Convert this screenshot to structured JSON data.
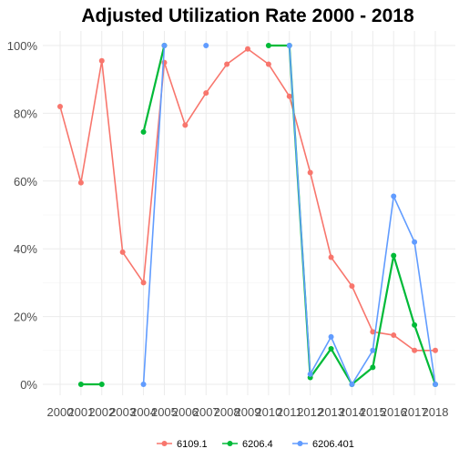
{
  "chart_data": {
    "type": "line",
    "title": "Adjusted Utilization Rate 2000 - 2018",
    "xlabel": "",
    "ylabel": "",
    "x": [
      "2000",
      "2001",
      "2002",
      "2003",
      "2004",
      "2005",
      "2006",
      "2007",
      "2008",
      "2009",
      "2010",
      "2011",
      "2012",
      "2013",
      "2014",
      "2015",
      "2016",
      "2017",
      "2018"
    ],
    "ylim": [
      0,
      1
    ],
    "yticks": [
      0,
      0.2,
      0.4,
      0.6,
      0.8,
      1.0
    ],
    "ytick_labels": [
      "0%",
      "20%",
      "40%",
      "60%",
      "80%",
      "100%"
    ],
    "grid": true,
    "legend_position": "bottom",
    "series": [
      {
        "name": "6109.1",
        "color": "#F8766D",
        "values": [
          0.82,
          0.595,
          0.955,
          0.39,
          0.3,
          0.95,
          0.765,
          0.86,
          0.945,
          0.99,
          0.945,
          0.85,
          0.625,
          0.375,
          0.29,
          0.155,
          0.145,
          0.1,
          0.1
        ]
      },
      {
        "name": "6206.4",
        "color": "#00BA38",
        "values": [
          null,
          0.0,
          0.0,
          null,
          0.745,
          1.0,
          null,
          null,
          null,
          null,
          1.0,
          1.0,
          0.02,
          0.105,
          0.0,
          0.05,
          0.38,
          0.175,
          0.0
        ]
      },
      {
        "name": "6206.401",
        "color": "#619CFF",
        "values": [
          null,
          null,
          null,
          null,
          0.0,
          1.0,
          null,
          1.0,
          null,
          null,
          null,
          1.0,
          0.03,
          0.14,
          0.0,
          0.1,
          0.555,
          0.42,
          0.0
        ]
      }
    ]
  }
}
